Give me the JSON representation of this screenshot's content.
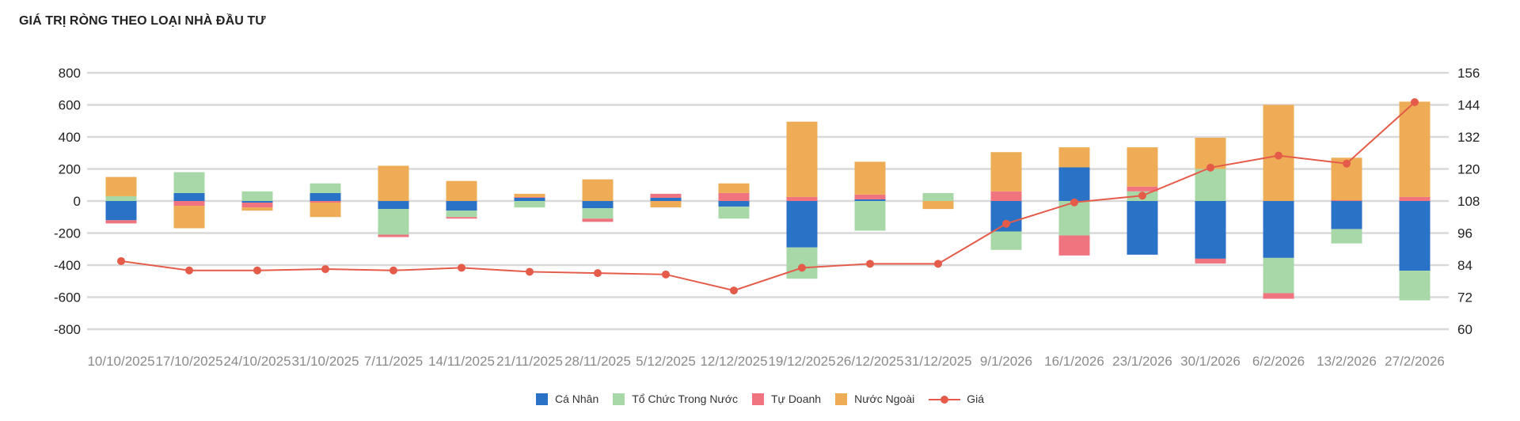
{
  "title": "GIÁ TRỊ RÒNG THEO LOẠI NHÀ ĐẦU TƯ",
  "legend": {
    "ca_nhan": "Cá Nhân",
    "to_chuc": "Tổ Chức Trong Nước",
    "tu_doanh": "Tự Doanh",
    "nuoc_ngoai": "Nước Ngoài",
    "gia": "Giá"
  },
  "colors": {
    "ca_nhan": "#2a72c6",
    "to_chuc": "#a8d8a8",
    "tu_doanh": "#ef7480",
    "nuoc_ngoai": "#edac55",
    "gia": "#e55b4a",
    "grid": "#d9d9d9"
  },
  "chart_data": {
    "type": "bar",
    "stacked": true,
    "title": "GIÁ TRỊ RÒNG THEO LOẠI NHÀ ĐẦU TƯ",
    "categories": [
      "10/10/2025",
      "17/10/2025",
      "24/10/2025",
      "31/10/2025",
      "7/11/2025",
      "14/11/2025",
      "21/11/2025",
      "28/11/2025",
      "5/12/2025",
      "12/12/2025",
      "19/12/2025",
      "26/12/2025",
      "31/12/2025",
      "9/1/2026",
      "16/1/2026",
      "23/1/2026",
      "30/1/2026",
      "6/2/2026",
      "13/2/2026",
      "27/2/2026"
    ],
    "series": [
      {
        "name": "Cá Nhân",
        "type": "bar",
        "axis": "left",
        "values": [
          -120,
          50,
          -10,
          50,
          -50,
          -60,
          20,
          -45,
          20,
          -35,
          -290,
          10,
          0,
          -190,
          210,
          -335,
          -360,
          -355,
          -175,
          -435
        ]
      },
      {
        "name": "Tổ Chức Trong Nước",
        "type": "bar",
        "axis": "left",
        "values": [
          30,
          130,
          60,
          60,
          -160,
          -40,
          -40,
          -65,
          0,
          -75,
          -195,
          -185,
          50,
          -115,
          -215,
          60,
          200,
          -220,
          -90,
          -185
        ]
      },
      {
        "name": "Tự Doanh",
        "type": "bar",
        "axis": "left",
        "values": [
          -20,
          -30,
          -30,
          -10,
          -15,
          -10,
          5,
          -20,
          25,
          50,
          25,
          30,
          0,
          60,
          -125,
          30,
          -30,
          -35,
          5,
          25
        ]
      },
      {
        "name": "Nước Ngoài",
        "type": "bar",
        "axis": "left",
        "values": [
          120,
          -140,
          -20,
          -90,
          220,
          125,
          20,
          135,
          -40,
          60,
          470,
          205,
          -50,
          245,
          125,
          245,
          195,
          600,
          265,
          595
        ]
      },
      {
        "name": "Giá",
        "type": "line",
        "axis": "right",
        "values": [
          85.5,
          82,
          82,
          82.5,
          82,
          83,
          81.5,
          81,
          80.5,
          74.5,
          83,
          84.5,
          84.5,
          99.5,
          107.5,
          110,
          120.5,
          125,
          122,
          145
        ]
      }
    ],
    "y_left": {
      "min": -800,
      "max": 800,
      "ticks": [
        -800,
        -600,
        -400,
        -200,
        0,
        200,
        400,
        600,
        800
      ]
    },
    "y_right": {
      "min": 60,
      "max": 156,
      "ticks": [
        60,
        72,
        84,
        96,
        108,
        120,
        132,
        144,
        156
      ]
    },
    "grid": true,
    "legend_position": "bottom"
  }
}
